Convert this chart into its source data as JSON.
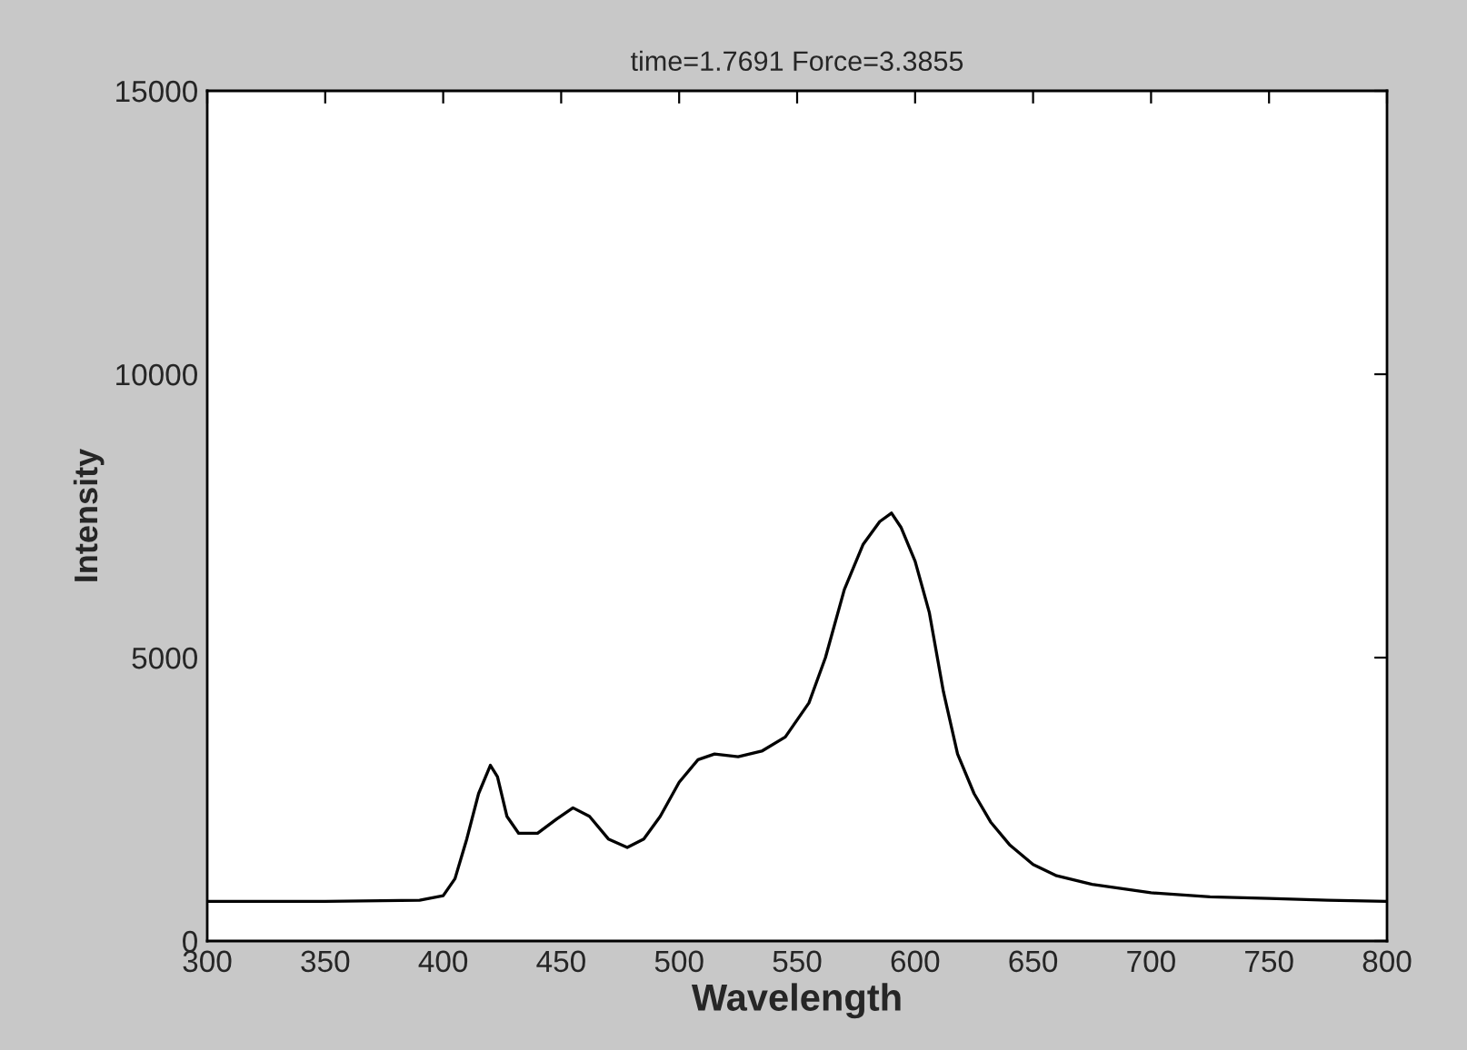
{
  "chart_data": {
    "type": "line",
    "title": "time=1.7691 Force=3.3855",
    "xlabel": "Wavelength",
    "ylabel": "Intensity",
    "x": [
      300,
      350,
      390,
      400,
      405,
      410,
      415,
      420,
      423,
      427,
      432,
      440,
      448,
      455,
      462,
      470,
      478,
      485,
      492,
      500,
      508,
      515,
      525,
      535,
      545,
      555,
      562,
      570,
      578,
      585,
      590,
      594,
      600,
      606,
      612,
      618,
      625,
      632,
      640,
      650,
      660,
      675,
      700,
      725,
      750,
      775,
      800
    ],
    "series": [
      {
        "color": "#000000",
        "values": [
          700,
          700,
          720,
          800,
          1100,
          1800,
          2600,
          3100,
          2900,
          2200,
          1900,
          1900,
          2150,
          2350,
          2200,
          1800,
          1650,
          1800,
          2200,
          2800,
          3200,
          3300,
          3250,
          3350,
          3600,
          4200,
          5000,
          6200,
          7000,
          7400,
          7550,
          7300,
          6700,
          5800,
          4400,
          3300,
          2600,
          2100,
          1700,
          1350,
          1150,
          1000,
          850,
          780,
          750,
          720,
          700
        ]
      }
    ],
    "xlim": [
      300,
      800
    ],
    "xticks": [
      300,
      350,
      400,
      450,
      500,
      550,
      600,
      650,
      700,
      750,
      800
    ],
    "ylim": [
      0,
      15000
    ],
    "yticks": [
      0,
      5000,
      10000,
      15000
    ],
    "grid": false,
    "marker": "none",
    "line_style": "solid"
  }
}
